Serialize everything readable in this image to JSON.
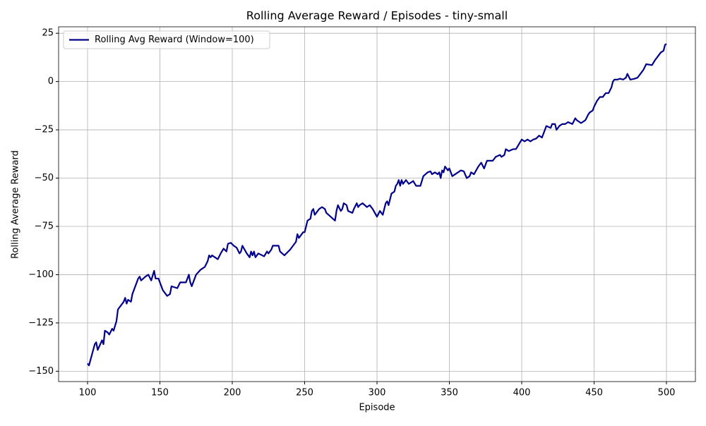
{
  "chart_data": {
    "type": "line",
    "title": "Rolling Average Reward / Episodes - tiny-small",
    "x_label": "Episode",
    "y_label": "Rolling Average Reward",
    "legend": "upper left",
    "grid": true,
    "xlim": [
      80,
      520
    ],
    "ylim": [
      -155.35,
      28.35
    ],
    "xticks": [
      100,
      150,
      200,
      250,
      300,
      350,
      400,
      450,
      500
    ],
    "yticks": [
      {
        "value": -150,
        "label": "−150"
      },
      {
        "value": -125,
        "label": "−125"
      },
      {
        "value": -100,
        "label": "−100"
      },
      {
        "value": -75,
        "label": "−75"
      },
      {
        "value": -50,
        "label": "−50"
      },
      {
        "value": -25,
        "label": "−25"
      },
      0,
      25
    ],
    "x": [
      100,
      101,
      105,
      106,
      107,
      110,
      111,
      112,
      114,
      115,
      117,
      118,
      120,
      121,
      125,
      126,
      127,
      128,
      130,
      131,
      135,
      136,
      137,
      140,
      142,
      144,
      146,
      147,
      149,
      152,
      155,
      157,
      158,
      162,
      164,
      167,
      168,
      170,
      171,
      172,
      175,
      178,
      181,
      183,
      184,
      185,
      186,
      190,
      192,
      194,
      196,
      197,
      199,
      201,
      203,
      205,
      206,
      207,
      210,
      212,
      213,
      214,
      215,
      216,
      218,
      222,
      224,
      225,
      227,
      228,
      232,
      233,
      236,
      240,
      244,
      245,
      246,
      248,
      249,
      250,
      252,
      254,
      255,
      256,
      257,
      260,
      262,
      264,
      265,
      268,
      271,
      272,
      273,
      275,
      276,
      277,
      279,
      280,
      283,
      284,
      286,
      287,
      288,
      290,
      293,
      295,
      297,
      300,
      302,
      304,
      306,
      307,
      308,
      310,
      312,
      313,
      314,
      315,
      316,
      317,
      318,
      320,
      322,
      325,
      327,
      330,
      332,
      335,
      337,
      338,
      340,
      342,
      343,
      344,
      345,
      346,
      347,
      348,
      349,
      350,
      352,
      354,
      356,
      358,
      360,
      362,
      364,
      365,
      367,
      370,
      372,
      374,
      376,
      380,
      382,
      385,
      386,
      388,
      389,
      391,
      394,
      396,
      400,
      402,
      404,
      406,
      408,
      410,
      412,
      414,
      416,
      417,
      420,
      421,
      423,
      424,
      426,
      428,
      430,
      432,
      435,
      437,
      438,
      440,
      441,
      444,
      446,
      447,
      449,
      450,
      452,
      454,
      456,
      458,
      460,
      462,
      463,
      464,
      466,
      468,
      470,
      472,
      473,
      475,
      478,
      480,
      482,
      484,
      486,
      490,
      492,
      494,
      496,
      498,
      499,
      500
    ],
    "series": [
      {
        "name": "Rolling Avg Reward (Window=100)",
        "color": "#00008b",
        "values": [
          -146,
          -147,
          -136,
          -135,
          -139,
          -134,
          -136,
          -129,
          -130,
          -131,
          -128,
          -129,
          -124,
          -118,
          -114,
          -112,
          -115,
          -113,
          -114,
          -110,
          -102,
          -101,
          -103,
          -101,
          -100,
          -103,
          -98,
          -102,
          -102,
          -108,
          -111,
          -110,
          -106,
          -107,
          -104,
          -104,
          -104,
          -100,
          -104,
          -106,
          -100,
          -97.5,
          -96,
          -93,
          -90,
          -91,
          -90,
          -92,
          -89,
          -86.5,
          -88,
          -84,
          -83.5,
          -85,
          -86,
          -89,
          -88,
          -85,
          -89,
          -91,
          -88,
          -90,
          -88,
          -91,
          -89,
          -90.5,
          -88,
          -89,
          -87,
          -85,
          -85,
          -88,
          -90,
          -87,
          -83,
          -79,
          -81,
          -79,
          -78,
          -78,
          -72,
          -71,
          -67,
          -66,
          -69,
          -66,
          -65,
          -66,
          -68,
          -70,
          -72,
          -67,
          -64,
          -67,
          -66,
          -63,
          -64,
          -67,
          -68,
          -66,
          -63,
          -65,
          -64,
          -63,
          -65,
          -64,
          -66,
          -70,
          -67,
          -69,
          -63,
          -62,
          -64,
          -58,
          -57,
          -54,
          -53,
          -51,
          -54,
          -51,
          -53,
          -51,
          -53,
          -51.5,
          -54,
          -54,
          -49,
          -47,
          -46.5,
          -48,
          -47,
          -48,
          -47,
          -50,
          -46,
          -47,
          -44,
          -45,
          -46,
          -45,
          -49,
          -48,
          -47,
          -46,
          -46.5,
          -50,
          -49,
          -47,
          -48,
          -44,
          -42,
          -45,
          -41,
          -41,
          -39,
          -38,
          -39,
          -38,
          -35,
          -36,
          -35,
          -35,
          -30,
          -31,
          -30,
          -31,
          -30,
          -29.5,
          -28,
          -29,
          -25,
          -23,
          -24,
          -22,
          -22,
          -25,
          -23,
          -22,
          -22,
          -21,
          -22,
          -19,
          -20,
          -21,
          -21.5,
          -20,
          -17,
          -16,
          -15,
          -13,
          -10,
          -8,
          -8,
          -6,
          -6,
          -3,
          0,
          1,
          1,
          1.5,
          1,
          2,
          4,
          1,
          1.5,
          2,
          4,
          6,
          9,
          8.5,
          11,
          13,
          15,
          16,
          19,
          19.5
        ]
      }
    ]
  }
}
